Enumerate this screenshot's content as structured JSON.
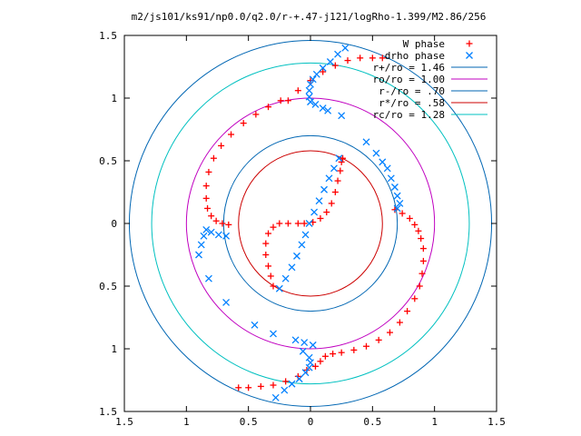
{
  "chart_data": {
    "type": "scatter",
    "title": "m2/js101/ks91/np0.0/q2.0/r-+.47-j121/logRho-1.399/M2.86/256",
    "xlim": [
      -1.5,
      1.5
    ],
    "ylim": [
      -1.5,
      1.5
    ],
    "x_ticks": [
      -1.5,
      -1,
      -0.5,
      0,
      0.5,
      1,
      1.5
    ],
    "y_ticks": [
      -1.5,
      -1,
      -0.5,
      0,
      0.5,
      1,
      1.5
    ],
    "x_tick_labels": [
      "1.5",
      "1",
      "0.5",
      "0",
      "0.5",
      "1",
      "1.5"
    ],
    "y_tick_labels": [
      "1.5",
      "1",
      "0.5",
      "0",
      "0.5",
      "1",
      "1.5"
    ],
    "grid": false,
    "legend_position": "top-right",
    "series": [
      {
        "name": "W phase",
        "marker": "plus",
        "color": "#ff0000",
        "points": [
          [
            -0.3,
            -0.5
          ],
          [
            -0.32,
            -0.42
          ],
          [
            -0.34,
            -0.34
          ],
          [
            -0.36,
            -0.25
          ],
          [
            -0.36,
            -0.16
          ],
          [
            -0.34,
            -0.08
          ],
          [
            -0.3,
            -0.03
          ],
          [
            -0.25,
            0.0
          ],
          [
            -0.18,
            0.0
          ],
          [
            -0.1,
            0.0
          ],
          [
            -0.05,
            0.0
          ],
          [
            0.02,
            0.01
          ],
          [
            0.08,
            0.04
          ],
          [
            0.13,
            0.09
          ],
          [
            0.17,
            0.16
          ],
          [
            0.2,
            0.25
          ],
          [
            0.22,
            0.34
          ],
          [
            0.24,
            0.42
          ],
          [
            0.25,
            0.49
          ],
          [
            0.26,
            0.52
          ],
          [
            -0.18,
            0.98
          ],
          [
            -0.1,
            1.06
          ],
          [
            0.0,
            1.14
          ],
          [
            0.1,
            1.21
          ],
          [
            0.2,
            1.26
          ],
          [
            0.3,
            1.3
          ],
          [
            0.4,
            1.32
          ],
          [
            0.5,
            1.32
          ],
          [
            0.58,
            1.32
          ],
          [
            -0.24,
            0.98
          ],
          [
            -0.34,
            0.93
          ],
          [
            -0.44,
            0.87
          ],
          [
            -0.54,
            0.8
          ],
          [
            -0.64,
            0.71
          ],
          [
            -0.72,
            0.62
          ],
          [
            -0.78,
            0.52
          ],
          [
            -0.82,
            0.41
          ],
          [
            -0.84,
            0.3
          ],
          [
            -0.84,
            0.2
          ],
          [
            -0.83,
            0.12
          ],
          [
            -0.8,
            0.06
          ],
          [
            -0.76,
            0.02
          ],
          [
            -0.71,
            0.0
          ],
          [
            -0.66,
            -0.01
          ],
          [
            0.68,
            0.11
          ],
          [
            0.74,
            0.08
          ],
          [
            0.8,
            0.04
          ],
          [
            0.84,
            -0.01
          ],
          [
            0.87,
            -0.06
          ],
          [
            0.89,
            -0.12
          ],
          [
            0.91,
            -0.2
          ],
          [
            0.91,
            -0.3
          ],
          [
            0.9,
            -0.4
          ],
          [
            0.88,
            -0.5
          ],
          [
            0.84,
            -0.6
          ],
          [
            0.78,
            -0.7
          ],
          [
            0.72,
            -0.79
          ],
          [
            0.64,
            -0.87
          ],
          [
            0.55,
            -0.93
          ],
          [
            0.45,
            -0.98
          ],
          [
            0.35,
            -1.01
          ],
          [
            0.25,
            -1.03
          ],
          [
            0.18,
            -1.04
          ],
          [
            0.12,
            -1.06
          ],
          [
            0.08,
            -1.1
          ],
          [
            0.04,
            -1.14
          ],
          [
            -0.03,
            -1.17
          ],
          [
            -0.1,
            -1.22
          ],
          [
            -0.2,
            -1.26
          ],
          [
            -0.3,
            -1.29
          ],
          [
            -0.4,
            -1.3
          ],
          [
            -0.5,
            -1.31
          ],
          [
            -0.58,
            -1.31
          ]
        ]
      },
      {
        "name": "drho phase",
        "marker": "cross",
        "color": "#0080ff",
        "points": [
          [
            -0.25,
            -0.52
          ],
          [
            -0.2,
            -0.44
          ],
          [
            -0.15,
            -0.35
          ],
          [
            -0.11,
            -0.26
          ],
          [
            -0.07,
            -0.17
          ],
          [
            -0.04,
            -0.09
          ],
          [
            -0.01,
            0.0
          ],
          [
            0.03,
            0.09
          ],
          [
            0.07,
            0.18
          ],
          [
            0.11,
            0.27
          ],
          [
            0.15,
            0.36
          ],
          [
            0.19,
            0.44
          ],
          [
            0.23,
            0.52
          ],
          [
            0.28,
            1.4
          ],
          [
            0.22,
            1.35
          ],
          [
            0.16,
            1.29
          ],
          [
            0.1,
            1.24
          ],
          [
            0.05,
            1.19
          ],
          [
            0.02,
            1.15
          ],
          [
            0.0,
            1.11
          ],
          [
            -0.01,
            1.06
          ],
          [
            -0.01,
            1.01
          ],
          [
            0.0,
            0.97
          ],
          [
            0.04,
            0.95
          ],
          [
            0.1,
            0.92
          ],
          [
            0.14,
            0.9
          ],
          [
            0.25,
            0.86
          ],
          [
            0.45,
            0.65
          ],
          [
            0.53,
            0.56
          ],
          [
            0.58,
            0.49
          ],
          [
            0.62,
            0.44
          ],
          [
            0.65,
            0.36
          ],
          [
            0.68,
            0.29
          ],
          [
            0.7,
            0.22
          ],
          [
            0.72,
            0.16
          ],
          [
            0.7,
            0.12
          ],
          [
            -0.68,
            -0.1
          ],
          [
            -0.74,
            -0.09
          ],
          [
            -0.8,
            -0.07
          ],
          [
            -0.84,
            -0.05
          ],
          [
            -0.86,
            -0.1
          ],
          [
            -0.88,
            -0.17
          ],
          [
            -0.9,
            -0.25
          ],
          [
            -0.82,
            -0.44
          ],
          [
            -0.68,
            -0.63
          ],
          [
            -0.45,
            -0.81
          ],
          [
            -0.3,
            -0.88
          ],
          [
            -0.06,
            -1.02
          ],
          [
            -0.01,
            -1.07
          ],
          [
            0.0,
            -1.11
          ],
          [
            -0.01,
            -1.15
          ],
          [
            -0.04,
            -1.19
          ],
          [
            -0.09,
            -1.24
          ],
          [
            -0.15,
            -1.28
          ],
          [
            -0.21,
            -1.33
          ],
          [
            -0.28,
            -1.39
          ],
          [
            0.02,
            -0.97
          ],
          [
            -0.05,
            -0.95
          ],
          [
            -0.12,
            -0.93
          ]
        ]
      },
      {
        "name": "r+/ro = 1.46",
        "shape": "circle",
        "radius": 1.46,
        "color": "#0066b3"
      },
      {
        "name": "ro/ro = 1.00",
        "shape": "circle",
        "radius": 1.0,
        "color": "#c000c0"
      },
      {
        "name": "r-/ro = .70",
        "shape": "circle",
        "radius": 0.7,
        "color": "#0066b3"
      },
      {
        "name": "r*/ro = .58",
        "shape": "circle",
        "radius": 0.58,
        "color": "#cc0000"
      },
      {
        "name": "rc/ro = 1.28",
        "shape": "circle",
        "radius": 1.28,
        "color": "#00c0c0"
      }
    ]
  }
}
